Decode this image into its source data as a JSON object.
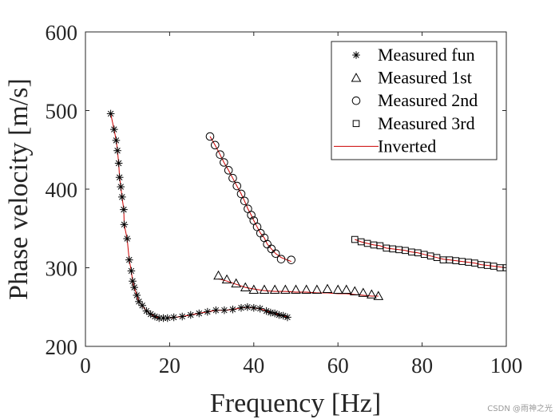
{
  "chart_data": {
    "type": "scatter",
    "title": "",
    "xlabel": "Frequency [Hz]",
    "ylabel": "Phase velocity [m/s]",
    "xlim": [
      0,
      100
    ],
    "ylim": [
      200,
      600
    ],
    "xticks": [
      0,
      20,
      40,
      60,
      80,
      100
    ],
    "yticks": [
      200,
      300,
      400,
      500,
      600
    ],
    "grid": false,
    "legend_position": "top-right",
    "series": [
      {
        "name": "Measured fun",
        "marker": "asterisk",
        "color": "#000000",
        "points": [
          [
            6,
            496
          ],
          [
            6.8,
            476
          ],
          [
            7.3,
            462
          ],
          [
            7.6,
            449
          ],
          [
            7.9,
            433
          ],
          [
            8.1,
            415
          ],
          [
            8.4,
            403
          ],
          [
            8.7,
            390
          ],
          [
            9.1,
            374
          ],
          [
            9.2,
            355
          ],
          [
            9.9,
            337
          ],
          [
            10.4,
            310
          ],
          [
            10.9,
            296
          ],
          [
            11.2,
            283
          ],
          [
            11.6,
            275
          ],
          [
            12.2,
            265
          ],
          [
            12.7,
            257
          ],
          [
            13.5,
            252
          ],
          [
            14.5,
            245
          ],
          [
            15.5,
            241
          ],
          [
            16.5,
            238
          ],
          [
            17.5,
            236
          ],
          [
            18.5,
            236
          ],
          [
            19.5,
            236
          ],
          [
            21,
            237
          ],
          [
            23,
            238
          ],
          [
            25,
            240
          ],
          [
            27,
            242
          ],
          [
            29,
            244
          ],
          [
            31,
            246
          ],
          [
            33,
            246
          ],
          [
            35,
            247
          ],
          [
            37,
            249
          ],
          [
            38.5,
            250
          ],
          [
            40,
            249
          ],
          [
            41.5,
            248
          ],
          [
            43,
            245
          ],
          [
            44,
            243
          ],
          [
            45,
            242
          ],
          [
            46,
            240
          ],
          [
            47,
            239
          ],
          [
            48,
            237
          ]
        ]
      },
      {
        "name": "Measured 1st",
        "marker": "triangle",
        "color": "#000000",
        "points": [
          [
            31.6,
            290
          ],
          [
            33.6,
            285
          ],
          [
            35.8,
            280
          ],
          [
            38,
            275
          ],
          [
            40,
            272
          ],
          [
            42.5,
            272
          ],
          [
            45,
            272
          ],
          [
            47.5,
            272
          ],
          [
            50,
            272
          ],
          [
            52.5,
            272
          ],
          [
            55,
            272
          ],
          [
            57.5,
            273
          ],
          [
            60,
            272
          ],
          [
            62,
            272
          ],
          [
            64,
            270
          ],
          [
            66,
            268
          ],
          [
            68,
            266
          ],
          [
            69.6,
            264
          ]
        ]
      },
      {
        "name": "Measured 2nd",
        "marker": "circle",
        "color": "#000000",
        "points": [
          [
            29.6,
            467
          ],
          [
            30.8,
            456
          ],
          [
            32,
            444
          ],
          [
            32.9,
            434
          ],
          [
            34,
            424
          ],
          [
            35,
            414
          ],
          [
            36,
            404
          ],
          [
            37,
            394
          ],
          [
            37.8,
            385
          ],
          [
            38.6,
            375
          ],
          [
            39.4,
            367
          ],
          [
            40,
            360
          ],
          [
            40.8,
            352
          ],
          [
            41.6,
            344
          ],
          [
            42.5,
            338
          ],
          [
            43.2,
            330
          ],
          [
            44.2,
            324
          ],
          [
            45.2,
            318
          ],
          [
            46.5,
            311
          ],
          [
            48.9,
            310
          ]
        ]
      },
      {
        "name": "Measured 3rd",
        "marker": "square",
        "color": "#000000",
        "points": [
          [
            64,
            336
          ],
          [
            65.5,
            333
          ],
          [
            67,
            331
          ],
          [
            68.5,
            329
          ],
          [
            70,
            328
          ],
          [
            71.5,
            325
          ],
          [
            73,
            324
          ],
          [
            74.5,
            323
          ],
          [
            76,
            322
          ],
          [
            77.5,
            320
          ],
          [
            79,
            319
          ],
          [
            80.5,
            317
          ],
          [
            82,
            315
          ],
          [
            83.5,
            313
          ],
          [
            85,
            310
          ],
          [
            86.5,
            310
          ],
          [
            88,
            309
          ],
          [
            89.5,
            308
          ],
          [
            91,
            307
          ],
          [
            92.5,
            306
          ],
          [
            94,
            304
          ],
          [
            95.5,
            303
          ],
          [
            97,
            302
          ],
          [
            98.5,
            300
          ],
          [
            100,
            300
          ]
        ]
      },
      {
        "name": "Inverted",
        "marker": "line",
        "color": "#cc0000",
        "segments": [
          [
            [
              6,
              496
            ],
            [
              6.8,
              476
            ],
            [
              7.3,
              462
            ],
            [
              7.6,
              449
            ],
            [
              7.9,
              433
            ],
            [
              8.1,
              415
            ],
            [
              8.4,
              403
            ],
            [
              8.7,
              390
            ],
            [
              9.1,
              374
            ],
            [
              9.2,
              355
            ],
            [
              9.9,
              337
            ],
            [
              10.4,
              310
            ],
            [
              10.9,
              296
            ],
            [
              11.2,
              283
            ],
            [
              11.6,
              275
            ],
            [
              12.2,
              265
            ],
            [
              12.7,
              257
            ],
            [
              13.5,
              252
            ],
            [
              14.5,
              245
            ],
            [
              15.5,
              241
            ],
            [
              16.5,
              238
            ],
            [
              17.5,
              236
            ],
            [
              18.5,
              236
            ],
            [
              19.5,
              236
            ],
            [
              21,
              237
            ],
            [
              23,
              238
            ],
            [
              25,
              240
            ],
            [
              27,
              242
            ],
            [
              29,
              244
            ],
            [
              31,
              246
            ],
            [
              33,
              246
            ],
            [
              35,
              247
            ],
            [
              37,
              249
            ],
            [
              38.5,
              250
            ],
            [
              40,
              249
            ],
            [
              41.5,
              248
            ],
            [
              43,
              245
            ],
            [
              44,
              243
            ],
            [
              45,
              242
            ],
            [
              46,
              240
            ],
            [
              47,
              239
            ],
            [
              48,
              237
            ]
          ],
          [
            [
              31.6,
              286
            ],
            [
              33.6,
              283
            ],
            [
              35.8,
              279
            ],
            [
              38,
              275
            ],
            [
              40,
              273
            ],
            [
              42.5,
              271
            ],
            [
              45,
              270
            ],
            [
              47.5,
              270
            ],
            [
              50,
              269
            ],
            [
              52.5,
              269
            ],
            [
              55,
              268
            ],
            [
              57.5,
              268
            ],
            [
              60,
              267
            ],
            [
              62,
              267
            ],
            [
              64,
              266
            ],
            [
              66,
              265
            ],
            [
              68,
              264
            ],
            [
              69.6,
              264
            ]
          ],
          [
            [
              29.6,
              467
            ],
            [
              30.8,
              456
            ],
            [
              32,
              444
            ],
            [
              32.9,
              434
            ],
            [
              34,
              424
            ],
            [
              35,
              414
            ],
            [
              36,
              404
            ],
            [
              37,
              394
            ],
            [
              37.8,
              385
            ],
            [
              38.6,
              375
            ],
            [
              39.4,
              367
            ],
            [
              40,
              360
            ],
            [
              40.8,
              352
            ],
            [
              41.6,
              344
            ],
            [
              42.5,
              338
            ],
            [
              43.2,
              330
            ],
            [
              44.2,
              324
            ],
            [
              45.2,
              318
            ],
            [
              46.5,
              313
            ],
            [
              48.9,
              308
            ]
          ],
          [
            [
              64,
              336
            ],
            [
              65.5,
              333
            ],
            [
              67,
              331
            ],
            [
              68.5,
              329
            ],
            [
              70,
              328
            ],
            [
              71.5,
              325
            ],
            [
              73,
              324
            ],
            [
              74.5,
              323
            ],
            [
              76,
              322
            ],
            [
              77.5,
              320
            ],
            [
              79,
              319
            ],
            [
              80.5,
              317
            ],
            [
              82,
              315
            ],
            [
              83.5,
              313
            ],
            [
              85,
              311
            ],
            [
              86.5,
              310
            ],
            [
              88,
              309
            ],
            [
              89.5,
              308
            ],
            [
              91,
              307
            ],
            [
              92.5,
              306
            ],
            [
              94,
              304
            ],
            [
              95.5,
              303
            ],
            [
              97,
              302
            ],
            [
              98.5,
              301
            ],
            [
              100,
              300
            ]
          ]
        ]
      }
    ]
  },
  "watermark": "CSDN @雨神之光"
}
